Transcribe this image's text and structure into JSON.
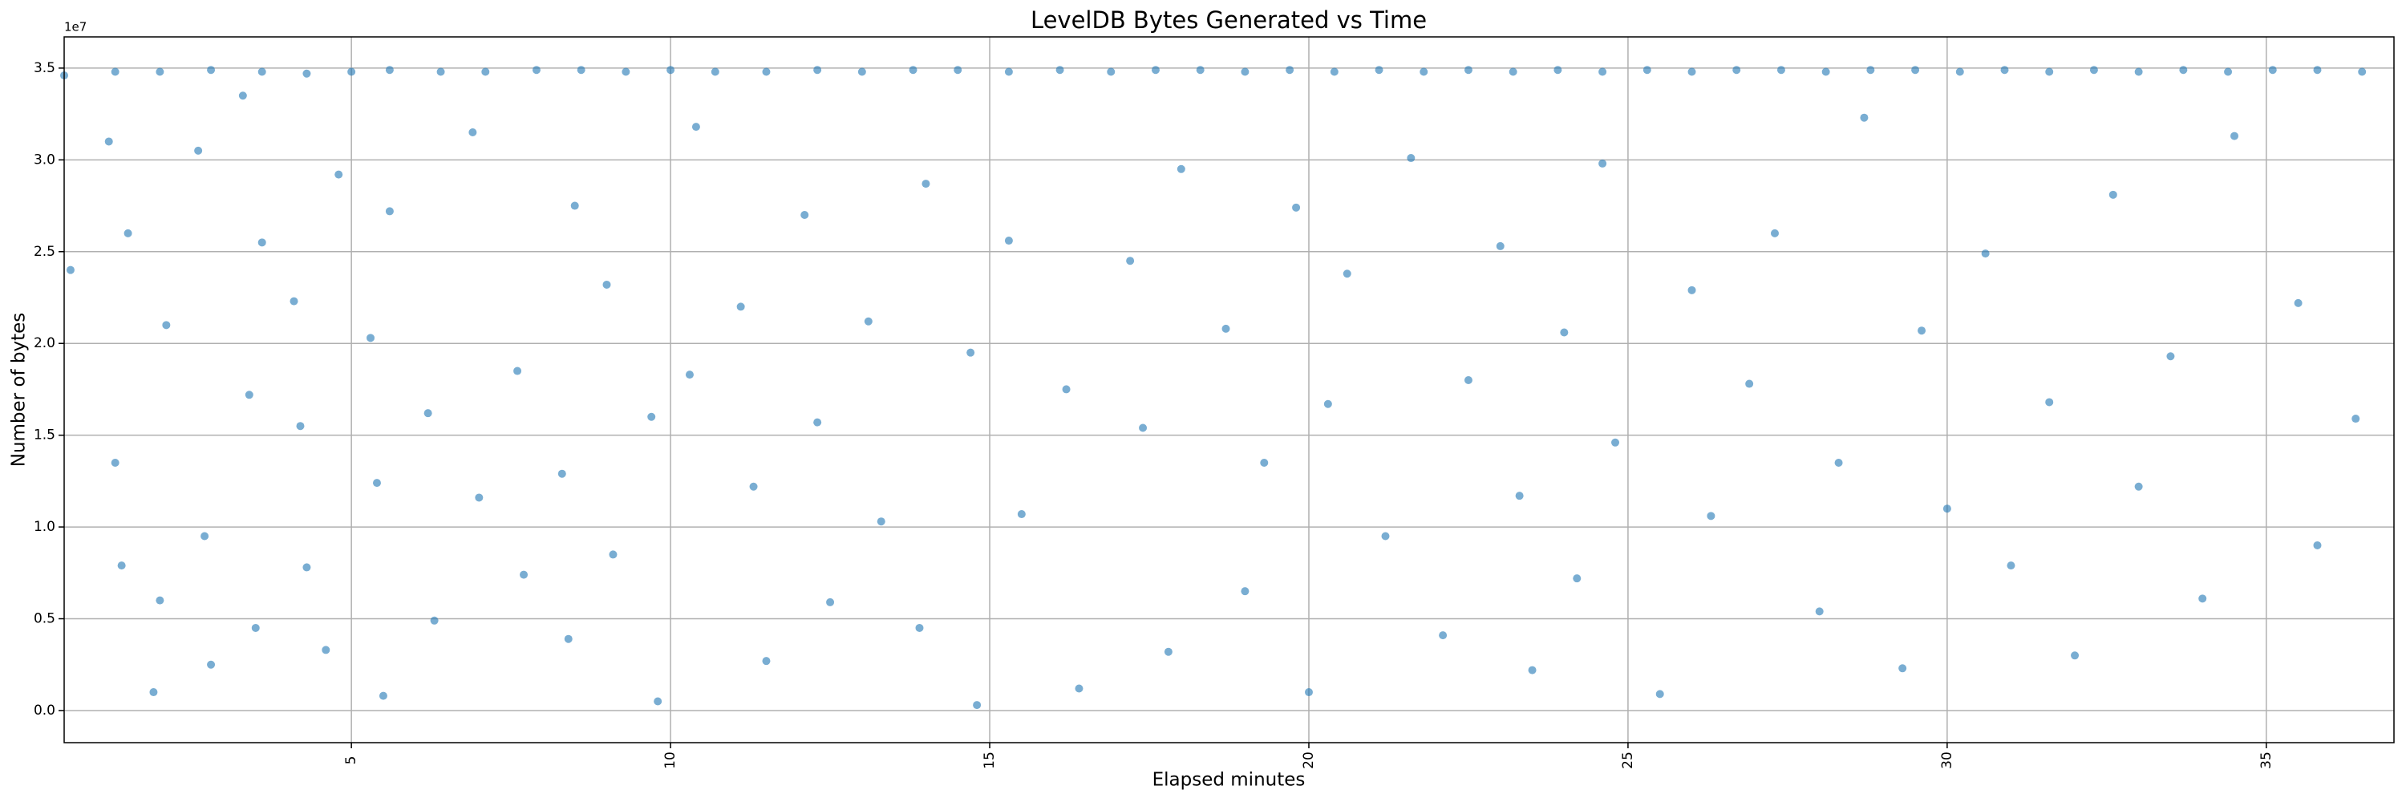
{
  "chart_data": {
    "type": "scatter",
    "title": "LevelDB Bytes Generated vs Time",
    "x_label": "Elapsed minutes",
    "y_label": "Number of bytes",
    "y_offset_label": "1e7",
    "color": "#1f77b4",
    "grid": true,
    "xlim": [
      0.5,
      37.0
    ],
    "ylim": [
      -1750000,
      36700000
    ],
    "xticks": [
      5,
      10,
      15,
      20,
      25,
      30,
      35
    ],
    "yticks": [
      {
        "value": 0,
        "label": "0.0"
      },
      {
        "value": 5000000,
        "label": "0.5"
      },
      {
        "value": 10000000,
        "label": "1.0"
      },
      {
        "value": 15000000,
        "label": "1.5"
      },
      {
        "value": 20000000,
        "label": "2.0"
      },
      {
        "value": 25000000,
        "label": "2.5"
      },
      {
        "value": 30000000,
        "label": "3.0"
      },
      {
        "value": 35000000,
        "label": "3.5"
      }
    ],
    "x": [
      0.5,
      1.3,
      2.0,
      2.8,
      3.6,
      4.3,
      5.0,
      5.6,
      6.4,
      7.1,
      7.9,
      8.6,
      9.3,
      10.0,
      10.7,
      11.5,
      12.3,
      13.0,
      13.8,
      14.5,
      15.3,
      16.1,
      16.9,
      17.6,
      18.3,
      19.0,
      19.7,
      20.4,
      21.1,
      21.8,
      22.5,
      23.2,
      23.9,
      24.6,
      25.3,
      26.0,
      26.7,
      27.4,
      28.1,
      28.8,
      29.5,
      30.2,
      30.9,
      31.6,
      32.3,
      33.0,
      33.7,
      34.4,
      35.1,
      35.8,
      36.5,
      0.6,
      1.2,
      1.3,
      1.4,
      1.5,
      1.9,
      2.0,
      2.1,
      2.6,
      2.7,
      2.8,
      3.3,
      3.4,
      3.5,
      3.6,
      4.1,
      4.2,
      4.3,
      4.6,
      4.8,
      5.3,
      5.4,
      5.5,
      5.6,
      6.2,
      6.3,
      6.9,
      7.0,
      7.6,
      7.7,
      8.3,
      8.4,
      8.5,
      9.0,
      9.1,
      9.7,
      9.8,
      10.3,
      10.4,
      11.1,
      11.3,
      11.5,
      12.1,
      12.3,
      12.5,
      13.1,
      13.3,
      13.9,
      14.0,
      14.7,
      14.8,
      15.3,
      15.5,
      16.2,
      16.4,
      17.2,
      17.4,
      17.8,
      18.0,
      18.7,
      19.0,
      19.3,
      19.8,
      20.0,
      20.3,
      20.6,
      21.2,
      21.6,
      22.1,
      22.5,
      23.0,
      23.3,
      23.5,
      24.0,
      24.2,
      24.6,
      24.8,
      25.5,
      26.0,
      26.3,
      26.9,
      27.3,
      28.0,
      28.3,
      28.7,
      29.3,
      29.6,
      30.0,
      30.6,
      31.0,
      31.6,
      32.0,
      32.6,
      33.0,
      33.5,
      34.0,
      34.5,
      35.5,
      35.8,
      36.4
    ],
    "values": [
      34600000,
      34800000,
      34800000,
      34900000,
      34800000,
      34700000,
      34800000,
      34900000,
      34800000,
      34800000,
      34900000,
      34900000,
      34800000,
      34900000,
      34800000,
      34800000,
      34900000,
      34800000,
      34900000,
      34900000,
      34800000,
      34900000,
      34800000,
      34900000,
      34900000,
      34800000,
      34900000,
      34800000,
      34900000,
      34800000,
      34900000,
      34800000,
      34900000,
      34800000,
      34900000,
      34800000,
      34900000,
      34900000,
      34800000,
      34900000,
      34900000,
      34800000,
      34900000,
      34800000,
      34900000,
      34800000,
      34900000,
      34800000,
      34900000,
      34900000,
      34800000,
      24000000,
      31000000,
      13500000,
      7900000,
      26000000,
      1000000,
      6000000,
      21000000,
      30500000,
      9500000,
      2500000,
      33500000,
      17200000,
      4500000,
      25500000,
      22300000,
      15500000,
      7800000,
      3300000,
      29200000,
      20300000,
      12400000,
      800000,
      27200000,
      16200000,
      4900000,
      31500000,
      11600000,
      18500000,
      7400000,
      12900000,
      3900000,
      27500000,
      23200000,
      8500000,
      16000000,
      500000,
      18300000,
      31800000,
      22000000,
      12200000,
      2700000,
      27000000,
      15700000,
      5900000,
      21200000,
      10300000,
      4500000,
      28700000,
      19500000,
      300000,
      25600000,
      10700000,
      17500000,
      1200000,
      24500000,
      15400000,
      3200000,
      29500000,
      20800000,
      6500000,
      13500000,
      27400000,
      1000000,
      16700000,
      23800000,
      9500000,
      30100000,
      4100000,
      18000000,
      25300000,
      11700000,
      2200000,
      20600000,
      7200000,
      29800000,
      14600000,
      900000,
      22900000,
      10600000,
      17800000,
      26000000,
      5400000,
      13500000,
      32300000,
      2300000,
      20700000,
      11000000,
      24900000,
      7900000,
      16800000,
      3000000,
      28100000,
      12200000,
      19300000,
      6100000,
      31300000,
      22200000,
      9000000,
      15900000
    ]
  }
}
